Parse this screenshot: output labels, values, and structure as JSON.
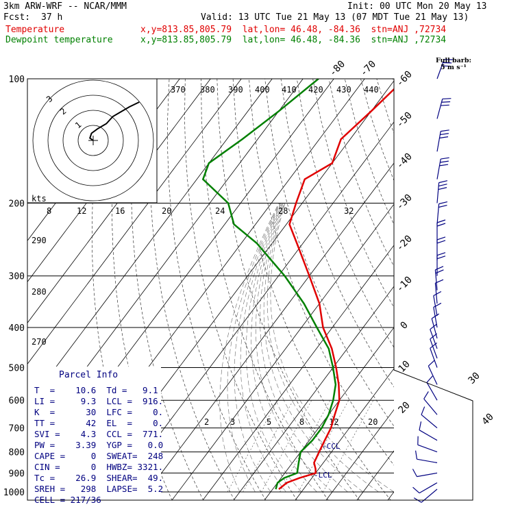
{
  "header": {
    "model": "3km ARW-WRF -- NCAR/MMM",
    "init": "Init: 00 UTC Mon 20 May 13",
    "fcst_label": "Fcst:",
    "fcst_value": "37 h",
    "valid": "Valid: 13 UTC Tue 21 May 13 (07 MDT Tue 21 May 13)",
    "temp_label": "Temperature",
    "temp_loc": "x,y=813.85,805.79  lat,lon= 46.48, -84.36  stn=ANJ ,72734",
    "dew_label": "Dewpoint temperature",
    "dew_loc": "x,y=813.85,805.79  lat,lon= 46.48, -84.36  stn=ANJ ,72734"
  },
  "barb_legend": {
    "line1": "Full barb:",
    "line2": "5 m s⁻¹"
  },
  "hodograph": {
    "ring_labels": [
      "3",
      "2",
      "1"
    ],
    "speed_unit": "kts",
    "speed_ticks": [
      "8",
      "12",
      "16",
      "20",
      "24",
      "28",
      "32"
    ],
    "theta_labels": [
      "370",
      "380",
      "390",
      "400",
      "410",
      "420",
      "430",
      "440"
    ]
  },
  "parcel": {
    "title": "Parcel Info",
    "rows": [
      "T  =    10.6  Td =   9.1",
      "LI =     9.3  LCL =  916.",
      "K  =      30  LFC =    0.",
      "TT =      42  EL  =    0.",
      "SVI =    4.3  CCL =  771.",
      "PW =    3.39  YGP =   0.0",
      "CAPE =     0  SWEAT=  248",
      "CIN =      0  HWBZ= 3321.",
      "Tc =    26.9  SHEAR=  49.",
      "SREH =   298  LAPSE=  5.2",
      "CELL = 217/36"
    ]
  },
  "colors": {
    "temperature": "#e00000",
    "dewpoint": "#008000",
    "parcel_text": "#000080",
    "barbs": "#000080"
  },
  "chart_data": {
    "type": "line",
    "title": "",
    "ylabel": "",
    "xlabel": "",
    "y_scale": "log-pressure",
    "ylim": [
      1000,
      100
    ],
    "pressure_ticks": [
      100,
      200,
      300,
      400,
      500,
      600,
      700,
      800,
      900,
      1000
    ],
    "isotherm_labels": [
      -80,
      -70,
      -60,
      -50,
      -40,
      -30,
      -20,
      -10,
      0,
      10,
      20,
      30,
      40
    ],
    "dry_adiabat_labels": [
      290,
      280,
      270
    ],
    "mixing_ratio_labels": [
      "2",
      "3",
      "5",
      "8",
      "12",
      "20"
    ],
    "annotations": [
      "CCL",
      "LCL"
    ],
    "series": [
      {
        "name": "Temperature",
        "color": "#e00000",
        "points": [
          {
            "p": 100,
            "t": -57
          },
          {
            "p": 120,
            "t": -60
          },
          {
            "p": 140,
            "t": -63
          },
          {
            "p": 160,
            "t": -60
          },
          {
            "p": 175,
            "t": -65
          },
          {
            "p": 200,
            "t": -62
          },
          {
            "p": 225,
            "t": -59
          },
          {
            "p": 250,
            "t": -52
          },
          {
            "p": 300,
            "t": -40
          },
          {
            "p": 350,
            "t": -30
          },
          {
            "p": 400,
            "t": -23
          },
          {
            "p": 450,
            "t": -15
          },
          {
            "p": 500,
            "t": -9
          },
          {
            "p": 550,
            "t": -4
          },
          {
            "p": 600,
            "t": 0
          },
          {
            "p": 650,
            "t": 2
          },
          {
            "p": 700,
            "t": 4
          },
          {
            "p": 750,
            "t": 5
          },
          {
            "p": 800,
            "t": 6
          },
          {
            "p": 850,
            "t": 7
          },
          {
            "p": 880,
            "t": 9
          },
          {
            "p": 900,
            "t": 10
          },
          {
            "p": 925,
            "t": 6
          },
          {
            "p": 950,
            "t": 3
          },
          {
            "p": 985,
            "t": 2
          }
        ]
      },
      {
        "name": "Dewpoint temperature",
        "color": "#008000",
        "points": [
          {
            "p": 100,
            "t": -85
          },
          {
            "p": 120,
            "t": -90
          },
          {
            "p": 140,
            "t": -95
          },
          {
            "p": 160,
            "t": -100
          },
          {
            "p": 175,
            "t": -98
          },
          {
            "p": 200,
            "t": -84
          },
          {
            "p": 225,
            "t": -77
          },
          {
            "p": 250,
            "t": -65
          },
          {
            "p": 300,
            "t": -48
          },
          {
            "p": 350,
            "t": -35
          },
          {
            "p": 400,
            "t": -25
          },
          {
            "p": 450,
            "t": -16
          },
          {
            "p": 500,
            "t": -10
          },
          {
            "p": 550,
            "t": -5
          },
          {
            "p": 600,
            "t": -2
          },
          {
            "p": 650,
            "t": 0
          },
          {
            "p": 700,
            "t": 1
          },
          {
            "p": 750,
            "t": 1
          },
          {
            "p": 800,
            "t": 0
          },
          {
            "p": 850,
            "t": 2
          },
          {
            "p": 900,
            "t": 4
          },
          {
            "p": 925,
            "t": 1
          },
          {
            "p": 950,
            "t": 0
          },
          {
            "p": 985,
            "t": 1
          }
        ]
      }
    ],
    "wind_barbs": [
      {
        "p": 100,
        "dir": 290,
        "spd": 15
      },
      {
        "p": 125,
        "dir": 285,
        "spd": 14
      },
      {
        "p": 150,
        "dir": 280,
        "spd": 15
      },
      {
        "p": 175,
        "dir": 280,
        "spd": 14
      },
      {
        "p": 200,
        "dir": 275,
        "spd": 13
      },
      {
        "p": 225,
        "dir": 275,
        "spd": 12
      },
      {
        "p": 250,
        "dir": 270,
        "spd": 11
      },
      {
        "p": 275,
        "dir": 270,
        "spd": 10
      },
      {
        "p": 300,
        "dir": 270,
        "spd": 9
      },
      {
        "p": 325,
        "dir": 265,
        "spd": 8
      },
      {
        "p": 350,
        "dir": 265,
        "spd": 7
      },
      {
        "p": 375,
        "dir": 260,
        "spd": 6
      },
      {
        "p": 400,
        "dir": 260,
        "spd": 6
      },
      {
        "p": 425,
        "dir": 255,
        "spd": 5
      },
      {
        "p": 450,
        "dir": 250,
        "spd": 5
      },
      {
        "p": 475,
        "dir": 250,
        "spd": 5
      },
      {
        "p": 500,
        "dir": 250,
        "spd": 5
      },
      {
        "p": 550,
        "dir": 245,
        "spd": 6
      },
      {
        "p": 600,
        "dir": 240,
        "spd": 6
      },
      {
        "p": 650,
        "dir": 230,
        "spd": 6
      },
      {
        "p": 700,
        "dir": 220,
        "spd": 6
      },
      {
        "p": 750,
        "dir": 210,
        "spd": 6
      },
      {
        "p": 800,
        "dir": 200,
        "spd": 6
      },
      {
        "p": 850,
        "dir": 190,
        "spd": 6
      },
      {
        "p": 900,
        "dir": 170,
        "spd": 5
      },
      {
        "p": 950,
        "dir": 150,
        "spd": 4
      },
      {
        "p": 985,
        "dir": 140,
        "spd": 3
      }
    ],
    "hodograph_trace": [
      {
        "u": 0,
        "v": 0
      },
      {
        "u": -2,
        "v": 1
      },
      {
        "u": -1,
        "v": 3
      },
      {
        "u": 3,
        "v": 5
      },
      {
        "u": 8,
        "v": 7
      },
      {
        "u": 12,
        "v": 10
      },
      {
        "u": 17,
        "v": 12
      },
      {
        "u": 22,
        "v": 14
      },
      {
        "u": 28,
        "v": 16
      }
    ]
  }
}
